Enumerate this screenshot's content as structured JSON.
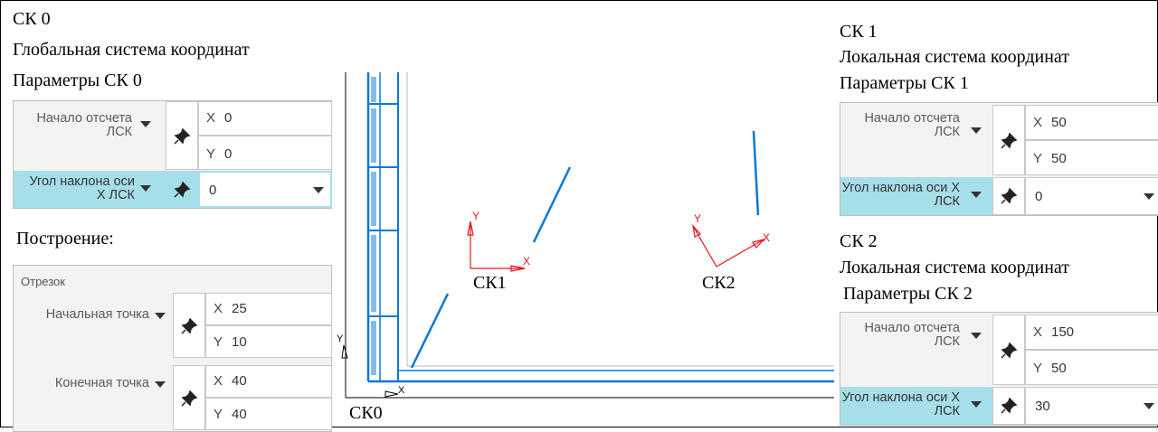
{
  "left": {
    "title1": "СК 0",
    "title2": "Глобальная система координат",
    "title3": "Параметры СК 0",
    "origin_label": "Начало отсчета ЛСК",
    "x_label": "X",
    "x_value": "0",
    "y_label": "Y",
    "y_value": "0",
    "angle_label": "Угол наклона оси X ЛСК",
    "angle_value": "0",
    "build_title": "Построение:",
    "segment_title": "Отрезок",
    "start_label": "Начальная точка",
    "start_x": "25",
    "start_y": "10",
    "end_label": "Конечная точка",
    "end_x": "40",
    "end_y": "40"
  },
  "drawing": {
    "sk1_label": "СК1",
    "sk2_label": "СК2",
    "sk0_label": "СК0",
    "axis_x": "X",
    "axis_y": "Y",
    "red": "#e8141b",
    "blue": "#0b78d6"
  },
  "right": {
    "sk1_title1": "СК 1",
    "sk1_title2": "Локальная система координат",
    "sk1_title3": "Параметры СК 1",
    "sk1_origin_label": "Начало отсчета ЛСК",
    "sk1_x": "50",
    "sk1_y": "50",
    "sk1_angle_label": "Угол наклона оси X ЛСК",
    "sk1_angle": "0",
    "sk2_title1": "СК 2",
    "sk2_title2": "Локальная система координат",
    "sk2_title3": "Параметры СК 2",
    "sk2_origin_label": "Начало отсчета ЛСК",
    "sk2_x": "150",
    "sk2_y": "50",
    "sk2_angle_label": "Угол наклона оси X ЛСК",
    "sk2_angle": "30"
  },
  "icons": [
    "pin-icon",
    "caret-down-icon",
    "dropdown-arrow-icon"
  ]
}
